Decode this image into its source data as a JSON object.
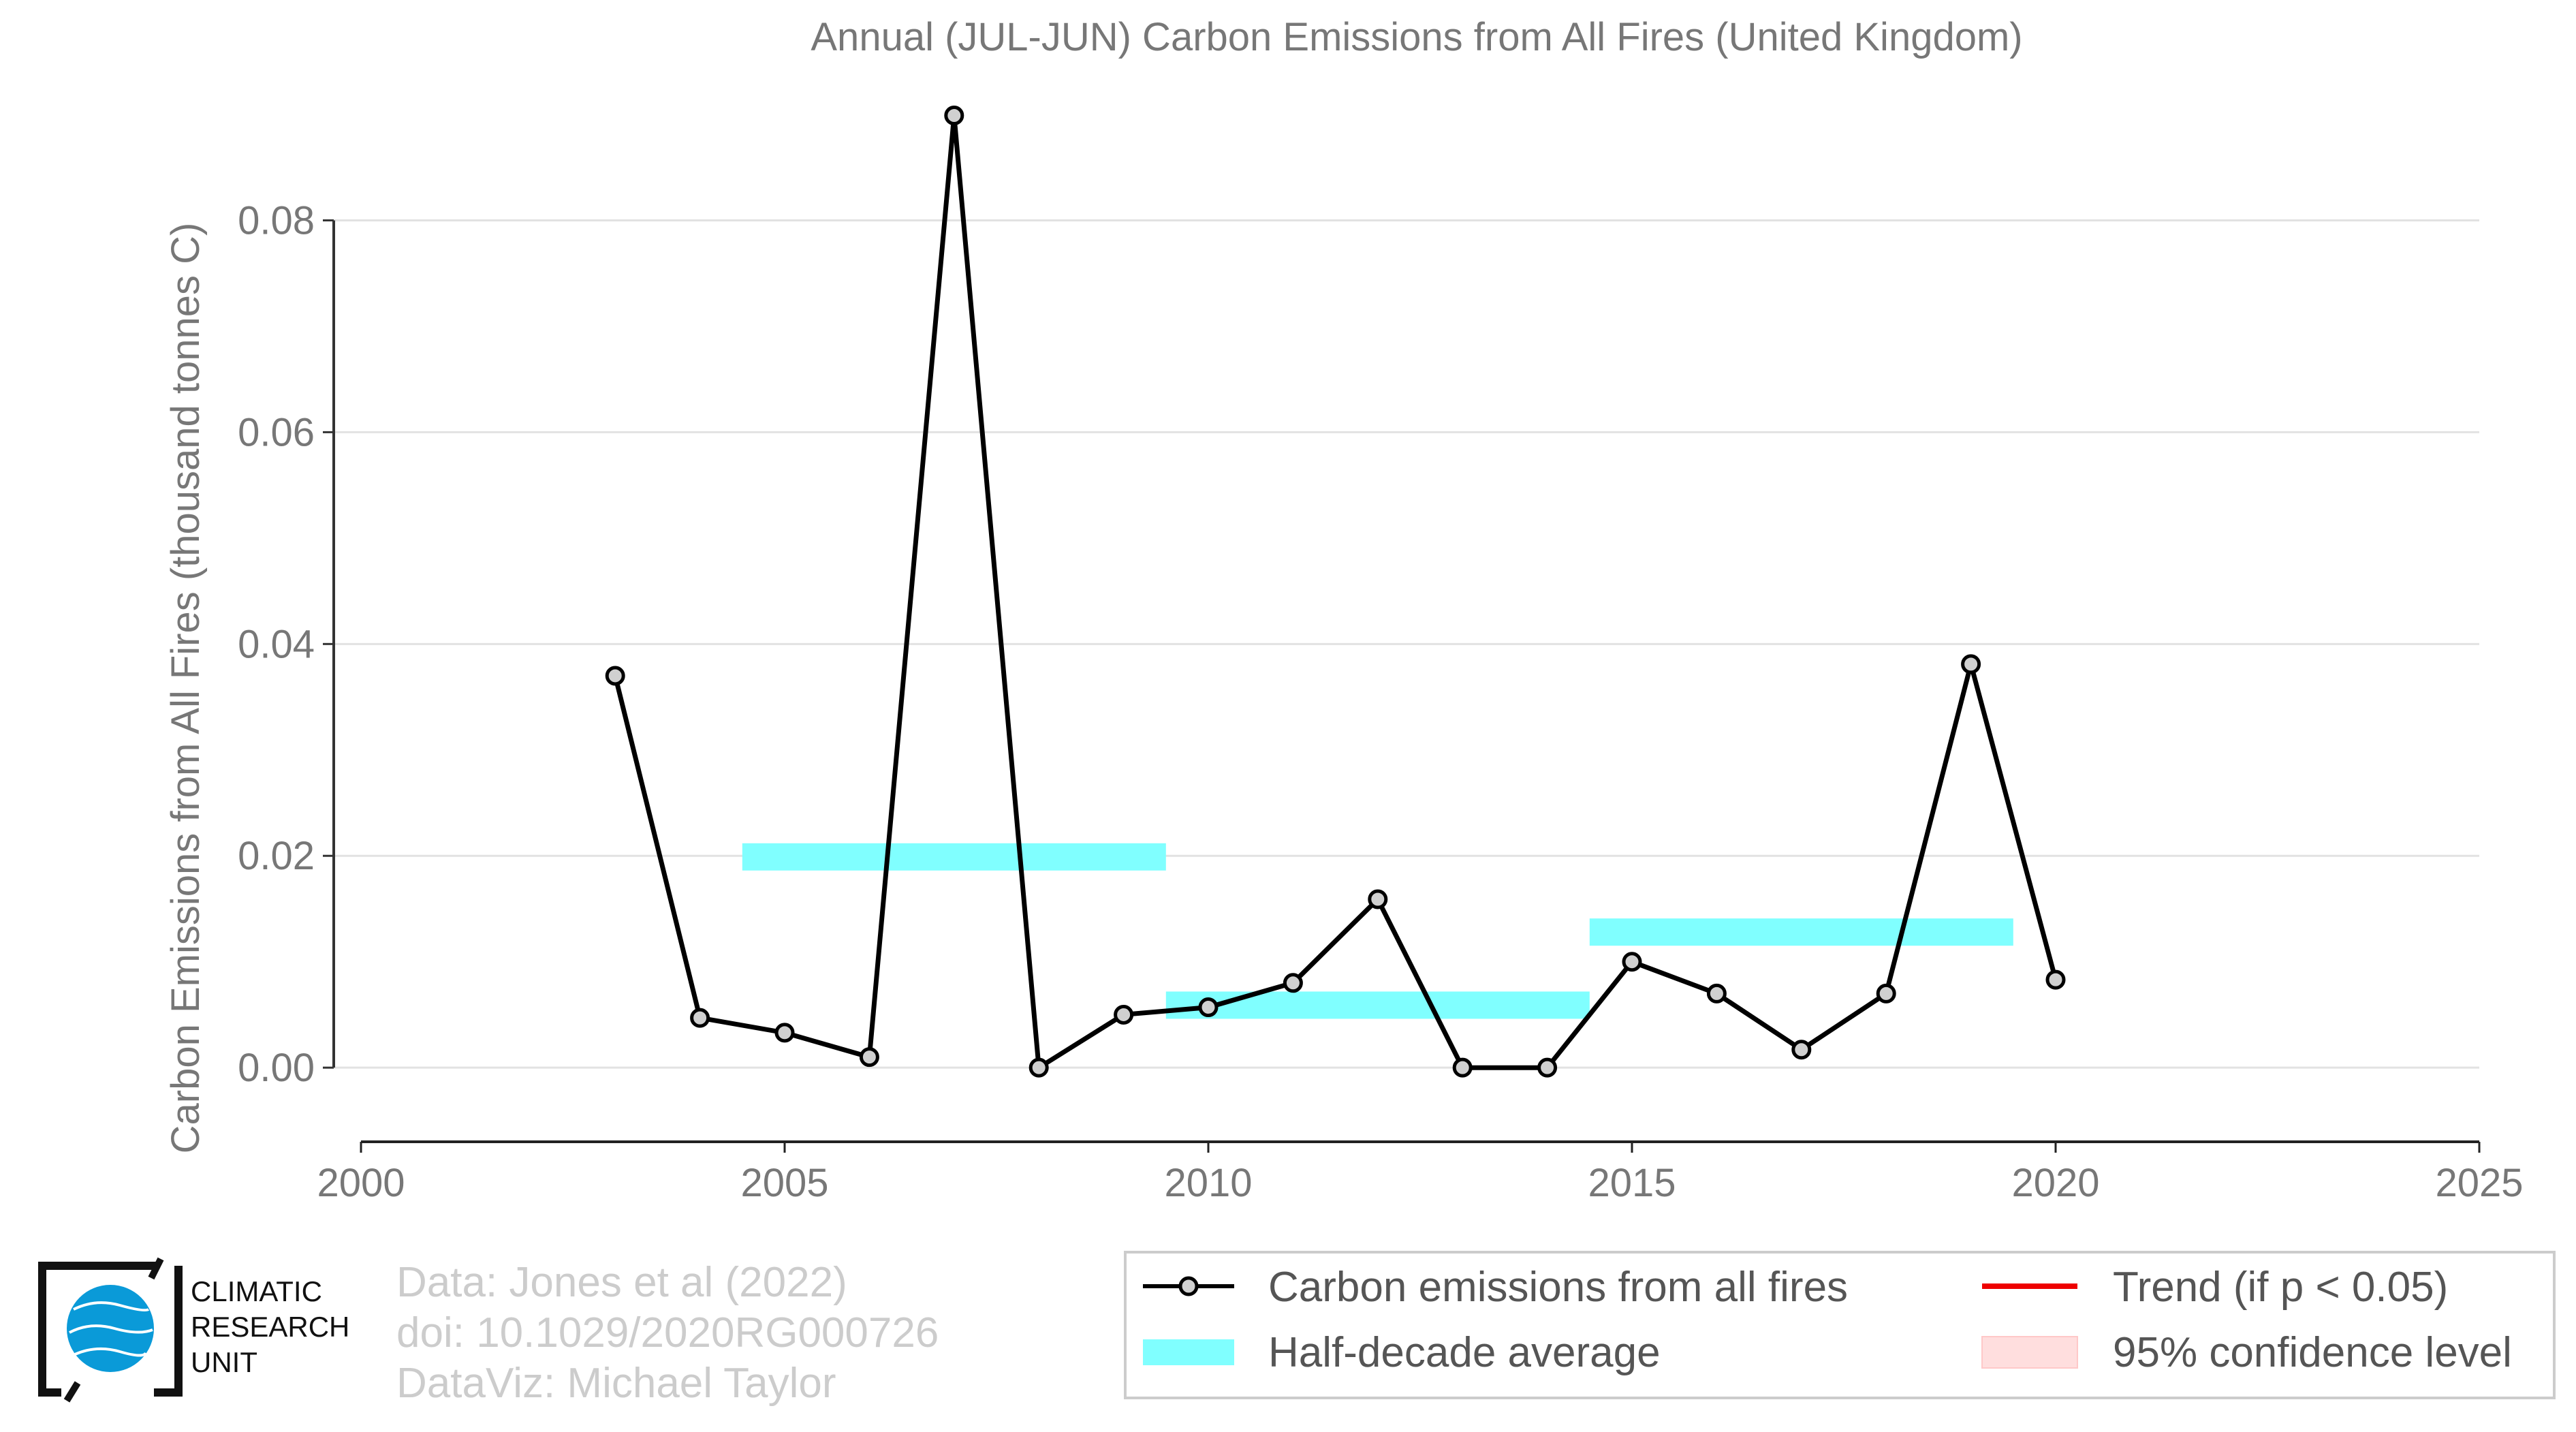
{
  "chart_data": {
    "type": "line",
    "title": "Annual (JUL-JUN) Carbon Emissions from All Fires (United Kingdom)",
    "xlabel": "",
    "ylabel": "Carbon Emissions from All Fires (thousand tonnes C)",
    "xlim": [
      2000,
      2025
    ],
    "ylim": [
      -0.007,
      0.09
    ],
    "xticks": [
      2000,
      2005,
      2010,
      2015,
      2020,
      2025
    ],
    "yticks": [
      0.0,
      0.02,
      0.04,
      0.06,
      0.08
    ],
    "ytick_labels": [
      "0.00",
      "0.02",
      "0.04",
      "0.06",
      "0.08"
    ],
    "grid": "horizontal",
    "series": [
      {
        "name": "Carbon emissions from all fires",
        "color": "#000000",
        "marker_fill": "#d0d0d0",
        "x": [
          2003,
          2004,
          2005,
          2006,
          2007,
          2008,
          2009,
          2010,
          2011,
          2012,
          2013,
          2014,
          2015,
          2016,
          2017,
          2018,
          2019,
          2020
        ],
        "y": [
          0.037,
          0.0047,
          0.0033,
          0.001,
          0.0899,
          0.0,
          0.005,
          0.0057,
          0.008,
          0.0159,
          0.0,
          0.0,
          0.01,
          0.007,
          0.0017,
          0.007,
          0.0381,
          0.0083
        ]
      },
      {
        "name": "Half-decade average",
        "color": "#80ffff",
        "type": "segments",
        "segments": [
          {
            "x_start": 2004.5,
            "x_end": 2009.5,
            "y": 0.0199
          },
          {
            "x_start": 2009.5,
            "x_end": 2014.5,
            "y": 0.0059
          },
          {
            "x_start": 2014.5,
            "x_end": 2019.5,
            "y": 0.0128
          }
        ]
      }
    ],
    "legend": {
      "placement": "bottom-right",
      "items": [
        {
          "label": "Carbon emissions from all fires",
          "kind": "line-marker",
          "color": "#000000"
        },
        {
          "label": "Trend (if p < 0.05)",
          "kind": "line",
          "color": "#ee0000"
        },
        {
          "label": "Half-decade average",
          "kind": "band",
          "color": "#80ffff"
        },
        {
          "label": "95% confidence level",
          "kind": "band",
          "color": "#ffdede"
        }
      ]
    }
  },
  "footer": {
    "credits": [
      "Data: Jones et al (2022)",
      "doi: 10.1029/2020RG000726",
      "DataViz: Michael Taylor"
    ],
    "logo_lines": [
      "CLIMATIC",
      "RESEARCH",
      "UNIT"
    ],
    "logo_icon": "globe-icon"
  }
}
